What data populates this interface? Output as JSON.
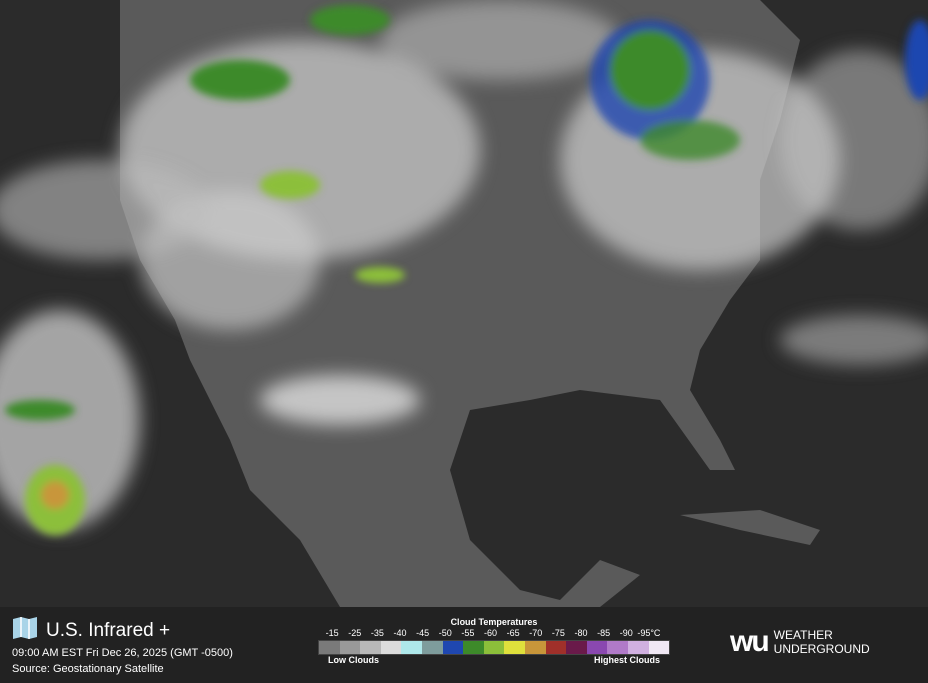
{
  "header": {
    "title": "U.S. Infrared +",
    "timestamp": "09:00 AM EST Fri Dec 26, 2025 (GMT -0500)",
    "source": "Source: Geostationary Satellite"
  },
  "legend": {
    "title": "Cloud Temperatures",
    "unit": "°C",
    "ticks": [
      "-15",
      "-25",
      "-35",
      "-40",
      "-45",
      "-50",
      "-55",
      "-60",
      "-65",
      "-70",
      "-75",
      "-80",
      "-85",
      "-90",
      "-95"
    ],
    "colors": [
      "#7a7a7a",
      "#999999",
      "#b8b8b8",
      "#dcdcdc",
      "#aee8ea",
      "#7e9c9c",
      "#1f47b0",
      "#3d8a2a",
      "#8cbf3a",
      "#dfe03c",
      "#c8963a",
      "#a0302a",
      "#6a1a4a",
      "#8a48b0",
      "#b07ac8",
      "#d0b0e0",
      "#f0e8f4"
    ],
    "low_label": "Low Clouds",
    "high_label": "Highest Clouds"
  },
  "brand": {
    "mark": "wu",
    "line1": "WEATHER",
    "line2": "UNDERGROUND"
  },
  "map": {
    "ocean": "#2b2b2b",
    "land": "#5a5a5a",
    "cloud": "#d8d8d8"
  }
}
